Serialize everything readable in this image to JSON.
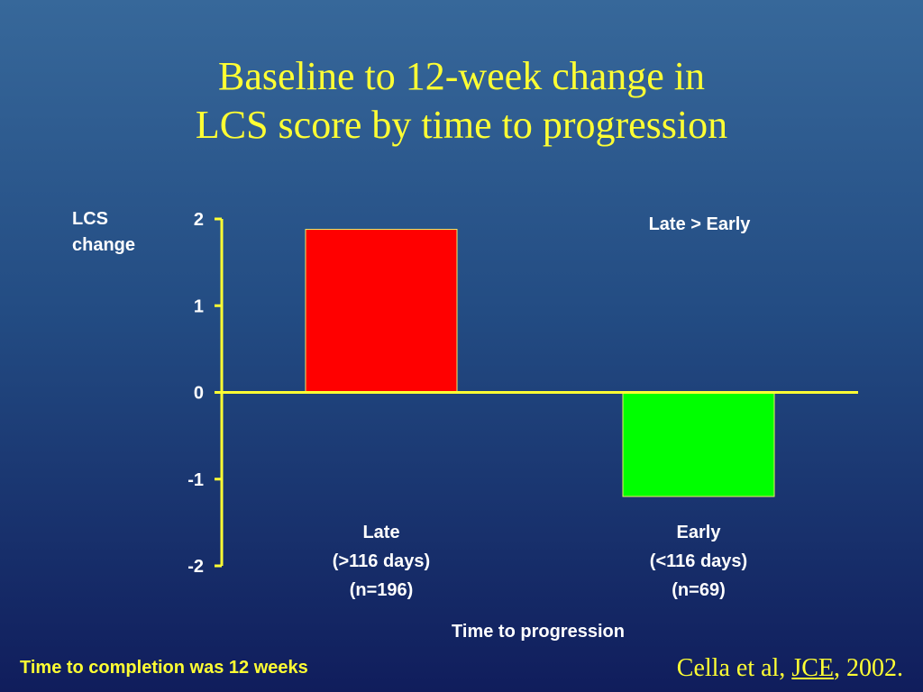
{
  "title": {
    "line1": "Baseline to 12-week change in",
    "line2": "LCS score by time to progression"
  },
  "chart_data": {
    "type": "bar",
    "ylabel": [
      "LCS",
      "change"
    ],
    "xlabel": "Time to progression",
    "ylim": [
      -2,
      2
    ],
    "yticks": [
      2,
      1,
      0,
      -1,
      -2
    ],
    "grid": false,
    "categories": [
      {
        "lines": [
          "Late",
          "(>116 days)",
          "(n=196)"
        ],
        "value": 1.88,
        "color": "#ff0000"
      },
      {
        "lines": [
          "Early",
          "(<116 days)",
          "(n=69)"
        ],
        "value": -1.2,
        "color": "#00ff00"
      }
    ],
    "annotation": "Late > Early",
    "axis_color": "#ffff33"
  },
  "footer": {
    "note": "Time to completion was 12 weeks",
    "citation_prefix": "Cella et al, ",
    "citation_journal": "JCE",
    "citation_suffix": ", 2002."
  }
}
